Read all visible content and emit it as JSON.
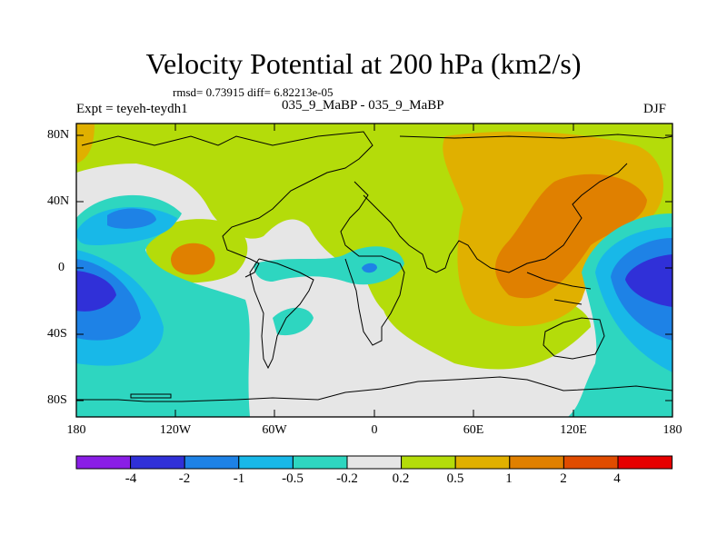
{
  "title": "Velocity Potential at 200 hPa (km2/s)",
  "stats_text": "rmsd= 0.73915  diff= 6.82213e-05",
  "left_label": "Expt = teyeh-teydh1",
  "center_label": "035_9_MaBP - 035_9_MaBP",
  "right_label": "DJF",
  "lat_ticks": [
    "80N",
    "40N",
    "0",
    "40S",
    "80S"
  ],
  "lon_ticks": [
    "180",
    "120W",
    "60W",
    "0",
    "60E",
    "120E",
    "180"
  ],
  "colorbar": {
    "labels": [
      "-4",
      "-2",
      "-1",
      "-0.5",
      "-0.2",
      "0.2",
      "0.5",
      "1",
      "2",
      "4"
    ],
    "colors": [
      "#8a1ee6",
      "#3030d8",
      "#1e82e6",
      "#18b8e8",
      "#2ed6c0",
      "#e6e6e6",
      "#b4dc0a",
      "#e0b000",
      "#e08000",
      "#e04c00",
      "#e60000"
    ]
  }
}
